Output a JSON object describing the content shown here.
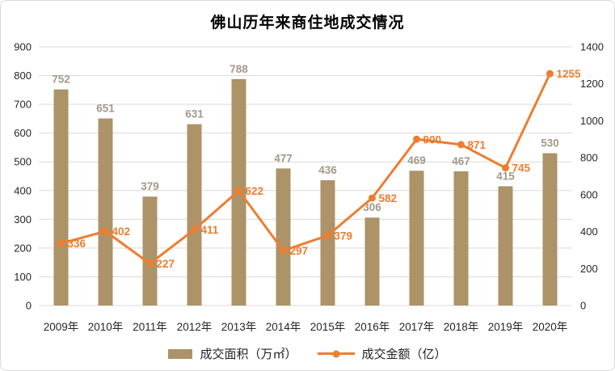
{
  "title": "佛山历年来商住地成交情况",
  "legend": {
    "area_label": "成交面积（万㎡）",
    "amount_label": "成交金额（亿）"
  },
  "colors": {
    "bar": "#AC9368",
    "bar_label": "#A39889",
    "line": "#ED7D31",
    "line_label": "#ED7D31",
    "grid": "#D9D9D9",
    "axis_text": "#262626",
    "border": "#D9D9D9",
    "background": "#FFFFFF"
  },
  "chart_data": {
    "type": "bar+line combo",
    "title": "佛山历年来商住地成交情况",
    "categories": [
      "2009年",
      "2010年",
      "2011年",
      "2012年",
      "2013年",
      "2014年",
      "2015年",
      "2016年",
      "2017年",
      "2018年",
      "2019年",
      "2020年"
    ],
    "series": [
      {
        "name": "成交面积（万㎡）",
        "type": "bar",
        "axis": "left",
        "values": [
          752,
          651,
          379,
          631,
          788,
          477,
          436,
          306,
          469,
          467,
          415,
          530
        ]
      },
      {
        "name": "成交金额（亿）",
        "type": "line",
        "axis": "right",
        "values": [
          336,
          402,
          227,
          411,
          622,
          297,
          379,
          582,
          900,
          871,
          745,
          1255
        ]
      }
    ],
    "left_axis": {
      "min": 0,
      "max": 900,
      "step": 100
    },
    "right_axis": {
      "min": 0,
      "max": 1400,
      "step": 200
    },
    "grid": true,
    "legend_position": "bottom"
  }
}
